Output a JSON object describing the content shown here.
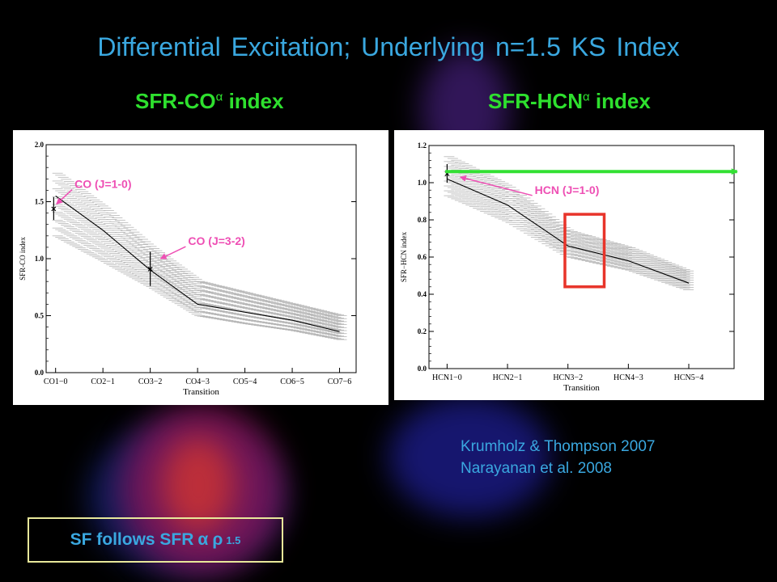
{
  "title": "Differential Excitation; Underlying n=1.5 KS Index",
  "panel_headers": {
    "left": {
      "text": "SFR-CO",
      "sup": "α",
      "suffix": " index"
    },
    "right": {
      "text": "SFR-HCN",
      "sup": "α",
      "suffix": " index"
    }
  },
  "references": [
    "Krumholz & Thompson 2007",
    "Narayanan et al. 2008"
  ],
  "note": {
    "prefix": "SF follows SFR",
    "sym1": "α",
    "sym2": "ρ",
    "exp": "1.5"
  },
  "colors": {
    "title": "#3aa8e0",
    "header": "#2ee02e",
    "callout": "#ee4fb4",
    "arrow": "#33e033",
    "box": "#e8342a"
  },
  "chart_data": [
    {
      "type": "line",
      "ylabel": "SFR-CO index",
      "xlabel": "Transition",
      "categories": [
        "CO1−0",
        "CO2−1",
        "CO3−2",
        "CO4−3",
        "CO5−4",
        "CO6−5",
        "CO7−6"
      ],
      "yticks": [
        "0.0",
        "0.5",
        "1.0",
        "1.5",
        "2.0"
      ],
      "ylim": [
        0,
        2.0
      ],
      "x": [
        0,
        1,
        2,
        3,
        4,
        5,
        6
      ],
      "values": [
        1.55,
        1.25,
        0.9,
        0.6,
        0.53,
        0.46,
        0.36
      ],
      "band_low": [
        1.2,
        0.98,
        0.75,
        0.5,
        0.43,
        0.37,
        0.29
      ],
      "band_high": [
        1.75,
        1.45,
        1.1,
        0.8,
        0.7,
        0.6,
        0.5
      ],
      "points": [
        {
          "x": -0.04,
          "y": 1.44,
          "err": 0.1
        },
        {
          "x": 2.0,
          "y": 0.91,
          "err": 0.15
        }
      ],
      "annotations": [
        {
          "text": "CO (J=1-0)",
          "x": 0.4,
          "y": 1.62,
          "tx": 0.02,
          "ty": 1.48
        },
        {
          "text": "CO (J=3-2)",
          "x": 2.8,
          "y": 1.12,
          "tx": 2.22,
          "ty": 1.0
        }
      ],
      "grid": false
    },
    {
      "type": "line",
      "ylabel": "SFR−HCN index",
      "xlabel": "Transition",
      "categories": [
        "HCN1−0",
        "HCN2−1",
        "HCN3−2",
        "HCN4−3",
        "HCN5−4"
      ],
      "yticks": [
        "0.0",
        "0.2",
        "0.4",
        "0.6",
        "0.8",
        "1.0",
        "1.2"
      ],
      "ylim": [
        0,
        1.2
      ],
      "x": [
        0,
        1,
        2,
        3,
        4
      ],
      "values": [
        1.02,
        0.88,
        0.66,
        0.58,
        0.46
      ],
      "band_low": [
        0.93,
        0.79,
        0.6,
        0.53,
        0.42
      ],
      "band_high": [
        1.14,
        0.98,
        0.74,
        0.65,
        0.52
      ],
      "points": [
        {
          "x": 0.0,
          "y": 1.05,
          "err": 0.05
        }
      ],
      "annotations": [
        {
          "text": "HCN (J=1-0)",
          "x": 1.45,
          "y": 0.94,
          "tx": 0.22,
          "ty": 1.03
        }
      ],
      "green_arrow": {
        "x0": -0.03,
        "x1": 4.8,
        "y": 1.06
      },
      "highlight_box": {
        "x0": 1.95,
        "x1": 2.6,
        "y0": 0.44,
        "y1": 0.83
      },
      "grid": false
    }
  ]
}
